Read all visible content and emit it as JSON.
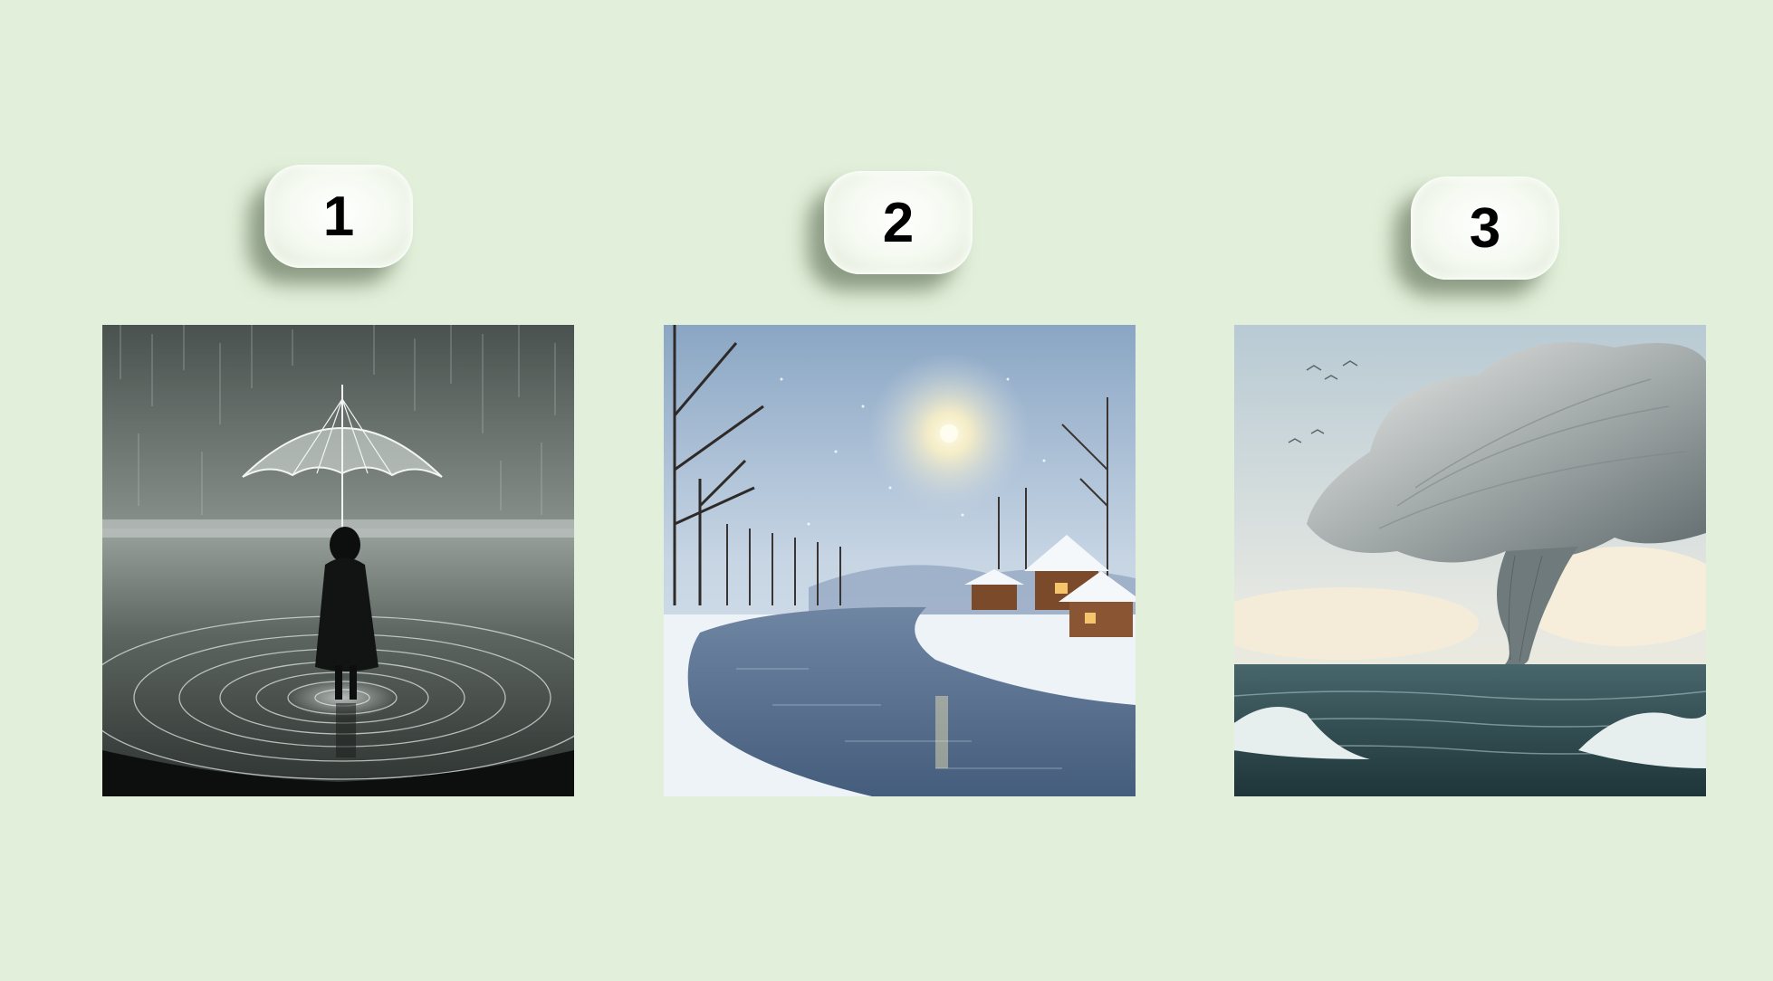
{
  "slide": {
    "background": "#e2efda",
    "items": [
      {
        "number": "1",
        "image_icon": "girl-with-umbrella-in-rain-illustration"
      },
      {
        "number": "2",
        "image_icon": "snowy-river-cottage-illustration"
      },
      {
        "number": "3",
        "image_icon": "tornado-over-sea-illustration"
      }
    ]
  }
}
